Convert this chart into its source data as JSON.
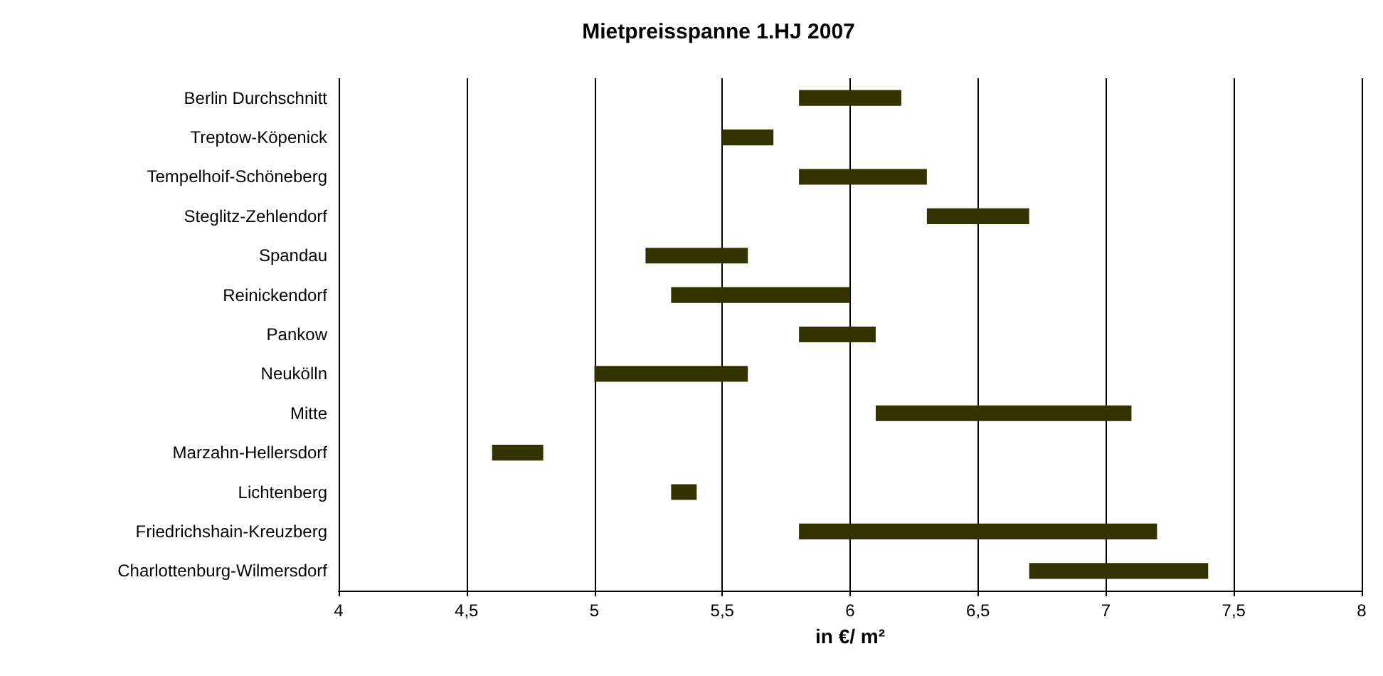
{
  "chart_data": {
    "type": "bar",
    "orientation": "horizontal",
    "title": "Mietpreisspanne 1.HJ 2007",
    "xlabel": "in €/ m²",
    "categories": [
      "Berlin Durchschnitt",
      "Treptow-Köpenick",
      "Tempelhoif-Schöneberg",
      "Steglitz-Zehlendorf",
      "Spandau",
      "Reinickendorf",
      "Pankow",
      "Neukölln",
      "Mitte",
      "Marzahn-Hellersdorf",
      "Lichtenberg",
      "Friedrichshain-Kreuzberg",
      "Charlottenburg-Wilmersdorf"
    ],
    "base": [
      5.8,
      5.5,
      5.8,
      6.3,
      5.2,
      5.3,
      5.8,
      5.0,
      6.1,
      4.6,
      5.3,
      5.8,
      6.7
    ],
    "values": [
      0.4,
      0.2,
      0.5,
      0.4,
      0.4,
      0.7,
      0.3,
      0.6,
      1.0,
      0.2,
      0.1,
      1.4,
      0.7
    ],
    "color": "#333300",
    "xlim": [
      4,
      8
    ],
    "xticks": [
      4,
      {
        "value": 4.5,
        "label": "4,5"
      },
      5,
      {
        "value": 5.5,
        "label": "5,5"
      },
      6,
      {
        "value": 6.5,
        "label": "6,5"
      },
      7,
      {
        "value": 7.5,
        "label": "7,5"
      },
      8
    ],
    "grid": "x"
  }
}
